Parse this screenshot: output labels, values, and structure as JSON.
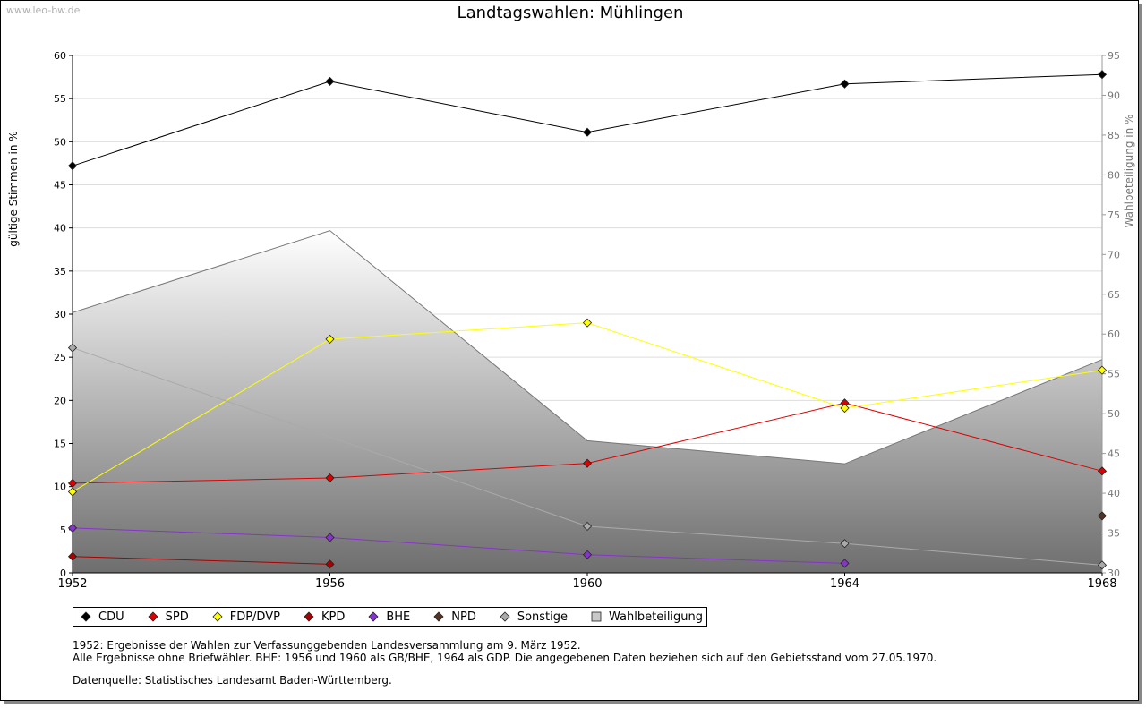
{
  "watermark": "www.leo-bw.de",
  "chart_data": {
    "type": "line",
    "title": "Landtagswahlen: Mühlingen",
    "x": [
      "1952",
      "1956",
      "1960",
      "1964",
      "1968"
    ],
    "ylabel": "gültige Stimmen in %",
    "ylabel_right": "Wahlbeteiligung in %",
    "ylim": [
      0,
      60
    ],
    "yticks": [
      0,
      5,
      10,
      15,
      20,
      25,
      30,
      35,
      40,
      45,
      50,
      55,
      60
    ],
    "ylim_right": [
      30,
      95
    ],
    "yticks_right": [
      30,
      35,
      40,
      45,
      50,
      55,
      60,
      65,
      70,
      75,
      80,
      85,
      90,
      95
    ],
    "grid": true,
    "legend_position": "bottom",
    "series": [
      {
        "name": "CDU",
        "color": "#000000",
        "values": [
          47.2,
          57.0,
          51.1,
          56.7,
          57.8
        ]
      },
      {
        "name": "SPD",
        "color": "#dd0000",
        "values": [
          10.4,
          11.0,
          12.7,
          19.7,
          11.8
        ]
      },
      {
        "name": "FDP/DVP",
        "color": "#ffff00",
        "values": [
          9.4,
          27.1,
          29.0,
          19.1,
          23.5
        ]
      },
      {
        "name": "KPD",
        "color": "#aa0000",
        "values": [
          1.9,
          1.0,
          null,
          null,
          null
        ]
      },
      {
        "name": "BHE",
        "color": "#8833cc",
        "values": [
          5.2,
          4.1,
          2.1,
          1.1,
          null
        ]
      },
      {
        "name": "NPD",
        "color": "#553322",
        "values": [
          null,
          null,
          null,
          null,
          6.6
        ]
      },
      {
        "name": "Sonstige",
        "color": "#aaaaaa",
        "values": [
          26.1,
          null,
          5.4,
          3.4,
          0.9
        ]
      }
    ],
    "area_series": {
      "name": "Wahlbeteiligung",
      "axis": "right",
      "values": [
        62.7,
        73.0,
        46.6,
        43.7,
        56.8
      ]
    }
  },
  "notes": [
    "1952: Ergebnisse der Wahlen zur Verfassunggebenden Landesversammlung am 9. März 1952.",
    "Alle Ergebnisse ohne Briefwähler. BHE: 1956 und 1960 als GB/BHE, 1964 als GDP. Die angegebenen Daten beziehen sich auf den Gebietsstand vom 27.05.1970."
  ],
  "source": "Datenquelle: Statistisches Landesamt Baden-Württemberg."
}
